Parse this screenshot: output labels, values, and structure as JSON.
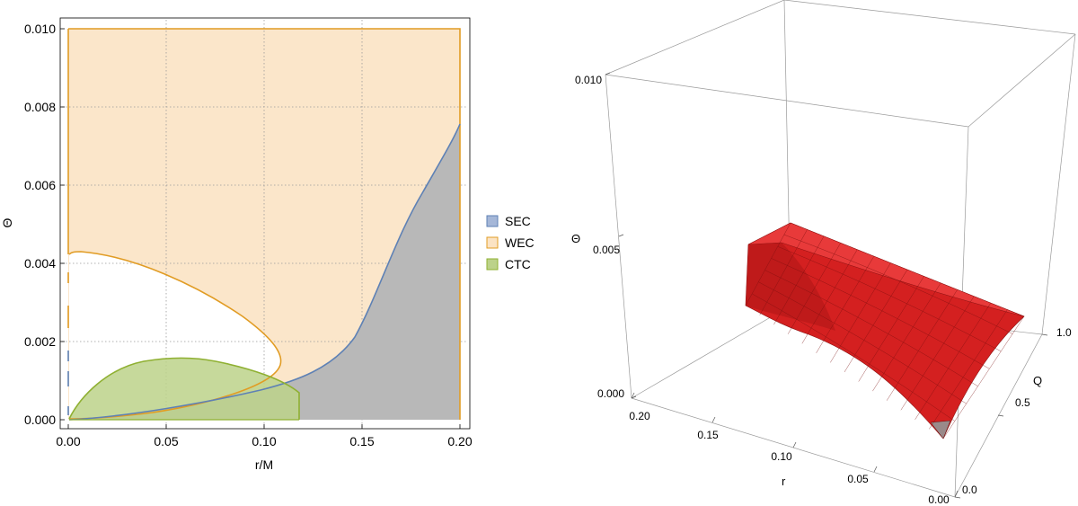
{
  "chart_data": [
    {
      "type": "area",
      "xlabel": "r/M",
      "ylabel": "Θ",
      "xlim": [
        0,
        0.2
      ],
      "ylim": [
        0,
        0.01
      ],
      "xticks": [
        "0.00",
        "0.05",
        "0.10",
        "0.15",
        "0.20"
      ],
      "yticks": [
        "0.000",
        "0.002",
        "0.004",
        "0.006",
        "0.008",
        "0.010"
      ],
      "grid": true,
      "legend_position": "right",
      "legend": [
        "SEC",
        "WEC",
        "CTC"
      ],
      "colors": {
        "SEC": "#5e81b5",
        "WEC": "#e19c24",
        "CTC": "#8fb032",
        "overlap": "#b8b8b8"
      },
      "series": [
        {
          "name": "SEC",
          "description_points": [
            [
              0.0,
              0.0
            ],
            [
              0.03,
              3e-05
            ],
            [
              0.06,
              0.00015
            ],
            [
              0.09,
              0.0004
            ],
            [
              0.12,
              0.0009
            ],
            [
              0.14,
              0.0016
            ],
            [
              0.15,
              0.0024
            ],
            [
              0.16,
              0.0036
            ],
            [
              0.18,
              0.0056
            ],
            [
              0.2,
              0.0076
            ]
          ]
        },
        {
          "name": "WEC",
          "upper_edge": 0.01,
          "boundary": [
            [
              0.0,
              0.0042
            ],
            [
              0.005,
              0.0043
            ],
            [
              0.03,
              0.0041
            ],
            [
              0.06,
              0.0036
            ],
            [
              0.085,
              0.0029
            ],
            [
              0.1,
              0.0022
            ],
            [
              0.107,
              0.0015
            ],
            [
              0.1,
              0.0008
            ],
            [
              0.07,
              0.0003
            ],
            [
              0.035,
              0.0001
            ],
            [
              0.0,
              0.0
            ]
          ]
        },
        {
          "name": "CTC",
          "boundary": [
            [
              0.0,
              0.0
            ],
            [
              0.01,
              0.0006
            ],
            [
              0.03,
              0.0013
            ],
            [
              0.058,
              0.0016
            ],
            [
              0.08,
              0.00148
            ],
            [
              0.1,
              0.0011
            ],
            [
              0.117,
              0.00052
            ],
            [
              0.117,
              0.0
            ]
          ]
        }
      ]
    },
    {
      "type": "surface3d",
      "xlabel": "r",
      "ylabel": "Q",
      "zlabel": "Θ",
      "xlim": [
        0,
        0.2
      ],
      "ylim": [
        0,
        1
      ],
      "zlim": [
        0,
        0.01
      ],
      "xticks": [
        "0.00",
        "0.05",
        "0.10",
        "0.15",
        "0.20"
      ],
      "yticks": [
        "0.0",
        "0.5",
        "1.0"
      ],
      "zticks": [
        "0.000",
        "0.005",
        "0.010"
      ],
      "surface_color": "#d42020"
    }
  ]
}
